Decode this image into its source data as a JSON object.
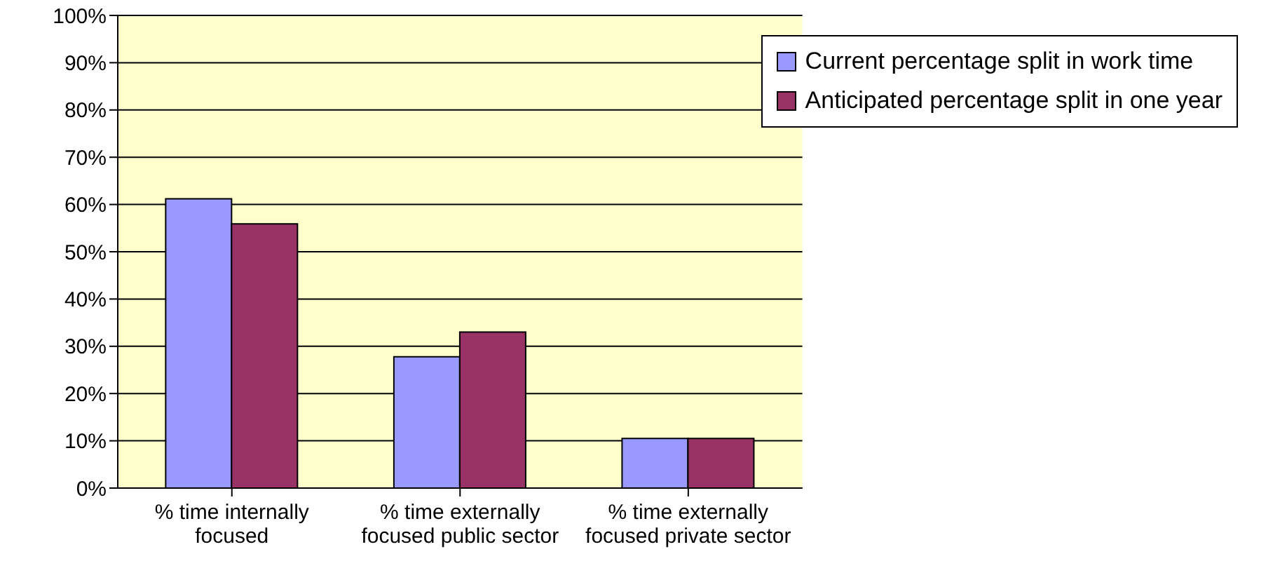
{
  "chart_data": {
    "type": "bar",
    "categories": [
      "% time internally focused",
      "% time externally focused public sector",
      "% time externally focused private sector"
    ],
    "series": [
      {
        "name": "Current percentage split in work time",
        "color": "#9999ff",
        "values": [
          61.2,
          27.8,
          10.5
        ]
      },
      {
        "name": "Anticipated percentage split in one year",
        "color": "#993366",
        "values": [
          55.9,
          33.0,
          10.5
        ]
      }
    ],
    "ylim": [
      0,
      100
    ],
    "yticks": [
      {
        "value": 0,
        "label": "0%"
      },
      {
        "value": 10,
        "label": "10%"
      },
      {
        "value": 20,
        "label": "20%"
      },
      {
        "value": 30,
        "label": "30%"
      },
      {
        "value": 40,
        "label": "40%"
      },
      {
        "value": 50,
        "label": "50%"
      },
      {
        "value": 60,
        "label": "60%"
      },
      {
        "value": 70,
        "label": "70%"
      },
      {
        "value": 80,
        "label": "80%"
      },
      {
        "value": 90,
        "label": "90%"
      },
      {
        "value": 100,
        "label": "100%"
      }
    ],
    "grid": "y",
    "legend": "top right"
  }
}
